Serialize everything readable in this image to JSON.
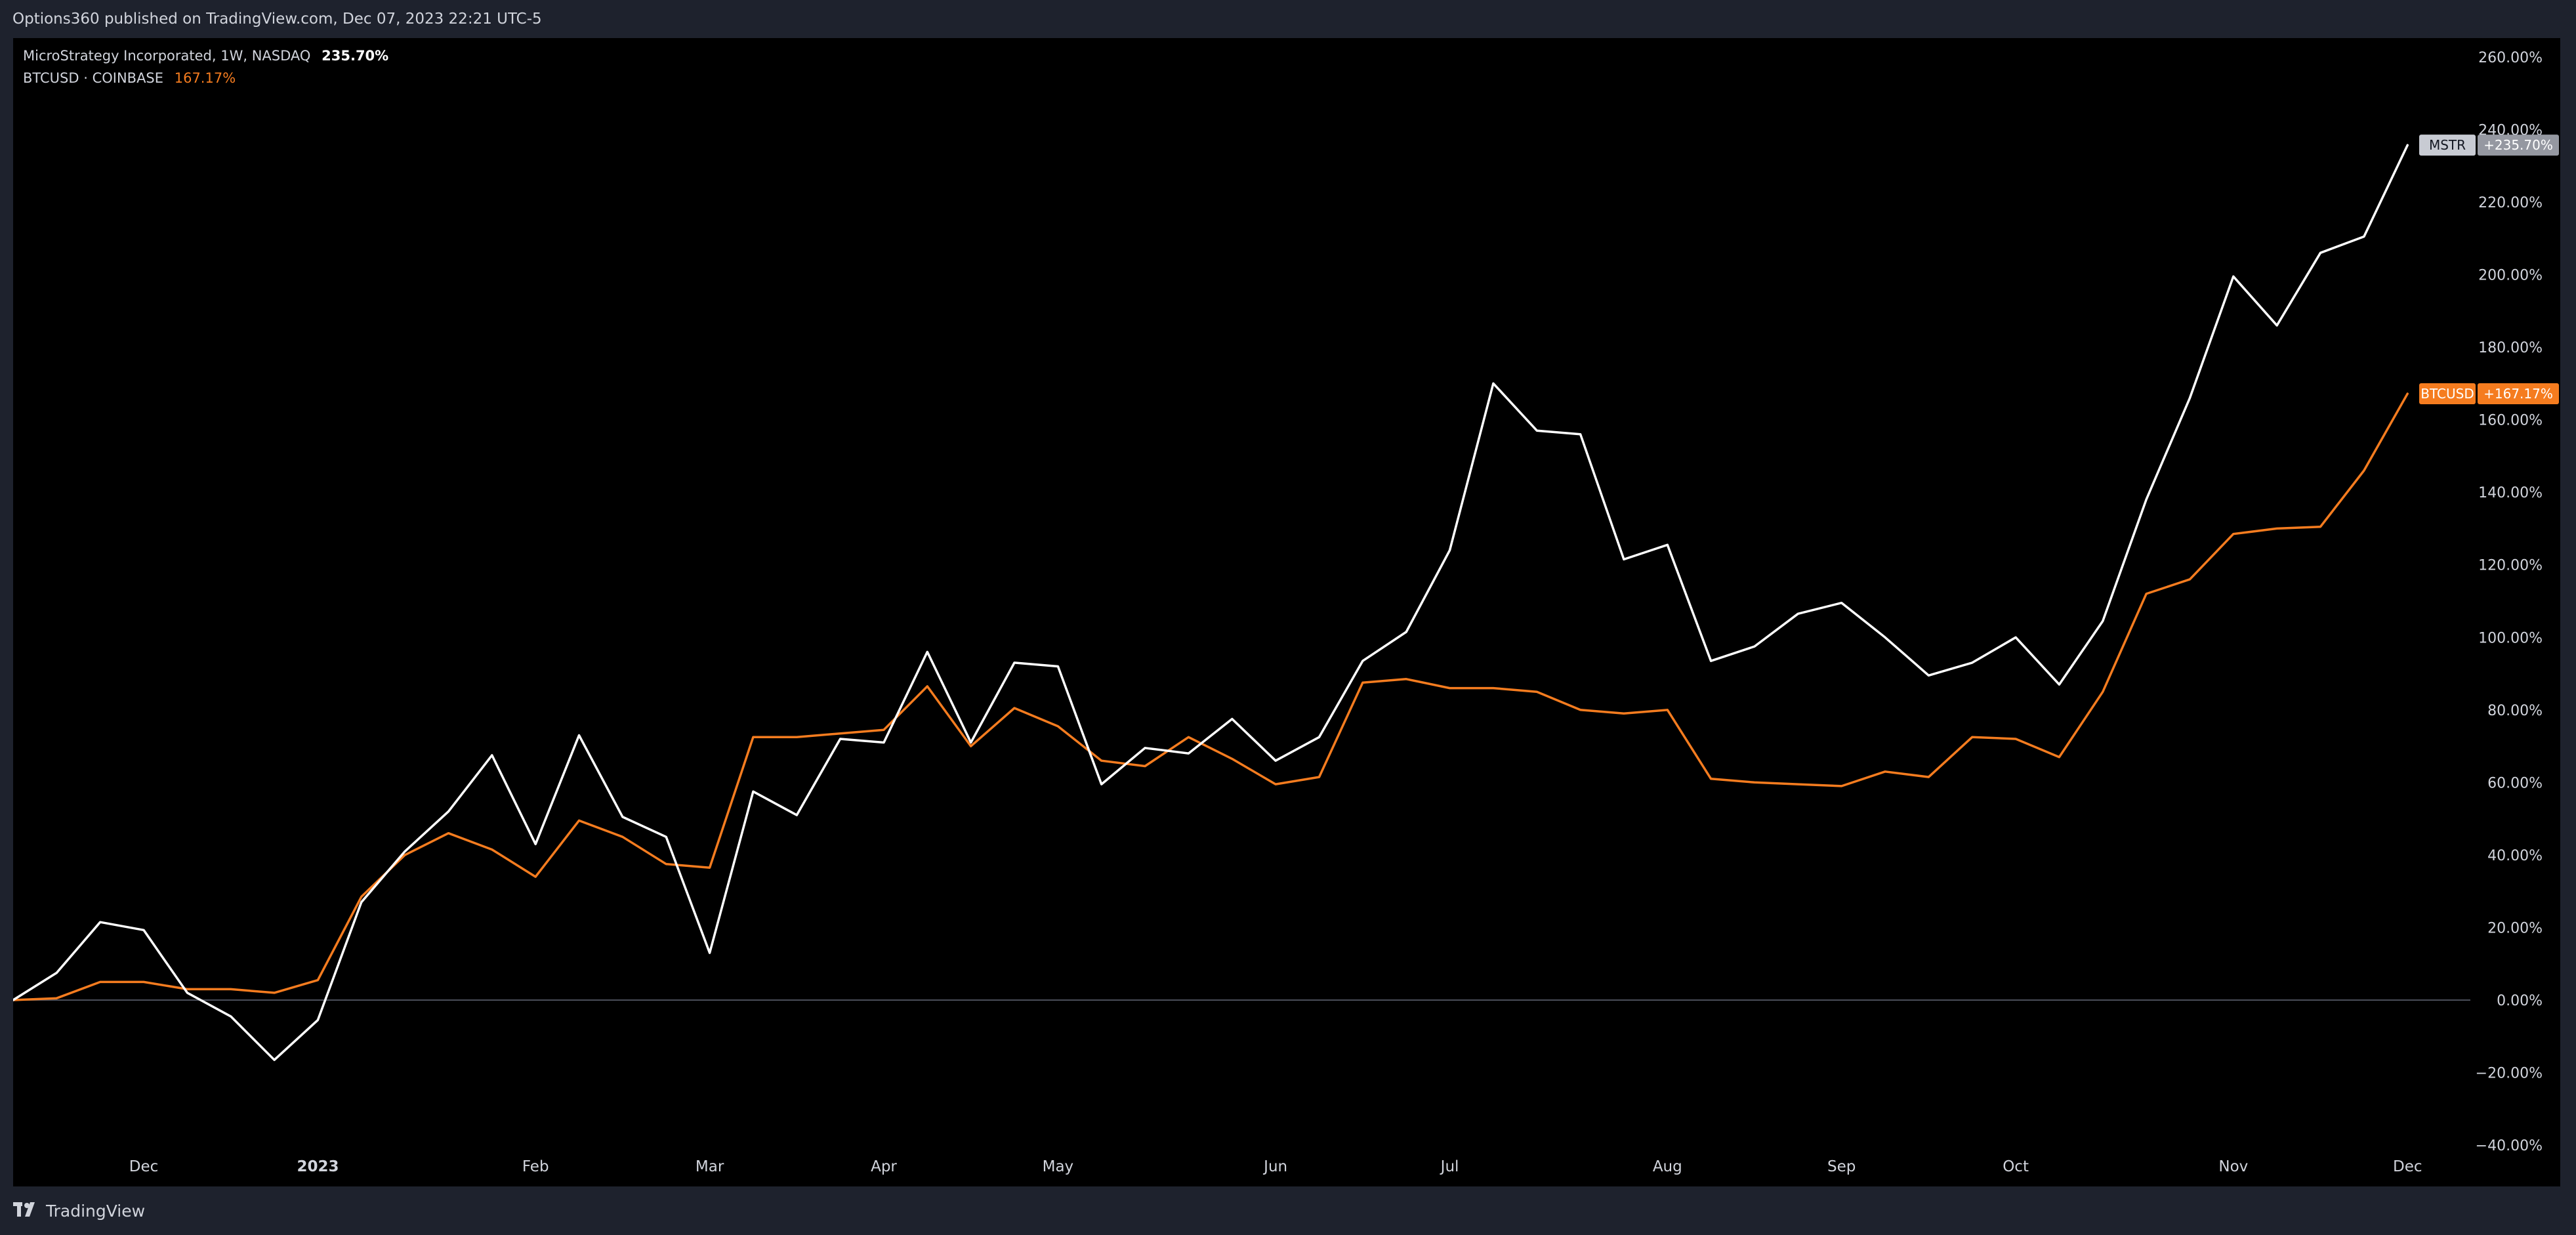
{
  "header": {
    "published": "Options360 published on TradingView.com, Dec 07, 2023 22:21 UTC-5"
  },
  "legend": {
    "mstr": {
      "name": "MicroStrategy Incorporated, 1W, NASDAQ",
      "value": "235.70%"
    },
    "btc": {
      "name": "BTCUSD · COINBASE",
      "value": "167.17%"
    }
  },
  "footer": {
    "brand": "TradingView",
    "logo_icon": "tradingview-logo-icon"
  },
  "colors": {
    "background": "#000000",
    "panel": "#1e222d",
    "text": "#d1d4dc",
    "mstr": "#ffffff",
    "btc": "#f57c1f",
    "zero_line": "#4a4e59",
    "mstr_badge_name_bg": "#c8cbd3",
    "mstr_badge_val_bg": "#9598a1"
  },
  "chart_data": {
    "type": "line",
    "ylim": [
      -40,
      260
    ],
    "yticks": [
      -40,
      -20,
      0,
      20,
      40,
      60,
      80,
      100,
      120,
      140,
      160,
      180,
      200,
      220,
      240,
      260
    ],
    "ytick_labels": [
      "−40.00%",
      "−20.00%",
      "0.00%",
      "20.00%",
      "40.00%",
      "60.00%",
      "80.00%",
      "100.00%",
      "120.00%",
      "140.00%",
      "160.00%",
      "180.00%",
      "200.00%",
      "220.00%",
      "240.00%",
      "260.00%"
    ],
    "x_tick_labels": [
      {
        "label": "Dec",
        "x": 3
      },
      {
        "label": "2023",
        "x": 7,
        "bold": true
      },
      {
        "label": "Feb",
        "x": 12
      },
      {
        "label": "Mar",
        "x": 16
      },
      {
        "label": "Apr",
        "x": 20
      },
      {
        "label": "May",
        "x": 24
      },
      {
        "label": "Jun",
        "x": 29
      },
      {
        "label": "Jul",
        "x": 33
      },
      {
        "label": "Aug",
        "x": 38
      },
      {
        "label": "Sep",
        "x": 42
      },
      {
        "label": "Oct",
        "x": 46
      },
      {
        "label": "Nov",
        "x": 51
      },
      {
        "label": "Dec",
        "x": 55
      }
    ],
    "xlim": [
      0,
      56.8
    ],
    "series": [
      {
        "name": "MSTR",
        "badge_value": "+235.70%",
        "values": [
          0,
          7.5,
          21.5,
          19.3,
          2,
          -4.5,
          -16.5,
          -5.5,
          27,
          41,
          52,
          67.5,
          43,
          73,
          50.5,
          45,
          13,
          57.5,
          51,
          72,
          71,
          96,
          71,
          93,
          92,
          59.5,
          69.5,
          68,
          77.5,
          66,
          72.5,
          93.5,
          101.5,
          124,
          170,
          157,
          156,
          121.5,
          125.5,
          93.5,
          97.5,
          106.5,
          109.5,
          100,
          89.5,
          93,
          100,
          87,
          104.5,
          138,
          166,
          199.5,
          186,
          206,
          210.5,
          235.7
        ]
      },
      {
        "name": "BTCUSD",
        "badge_value": "+167.17%",
        "values": [
          0,
          0.5,
          5,
          5,
          3,
          3,
          2,
          5.5,
          28.5,
          40,
          46,
          41.5,
          34,
          49.5,
          45,
          37.5,
          36.5,
          72.5,
          72.5,
          73.5,
          74.5,
          86.5,
          70,
          80.5,
          75.5,
          66,
          64.5,
          72.5,
          66.5,
          59.5,
          61.5,
          87.5,
          88.5,
          86,
          86,
          85,
          80,
          79,
          80,
          61,
          60,
          59.5,
          59,
          63,
          61.5,
          72.5,
          72,
          67,
          85,
          112,
          116,
          128.5,
          130,
          130.5,
          146,
          167.17
        ]
      }
    ]
  }
}
